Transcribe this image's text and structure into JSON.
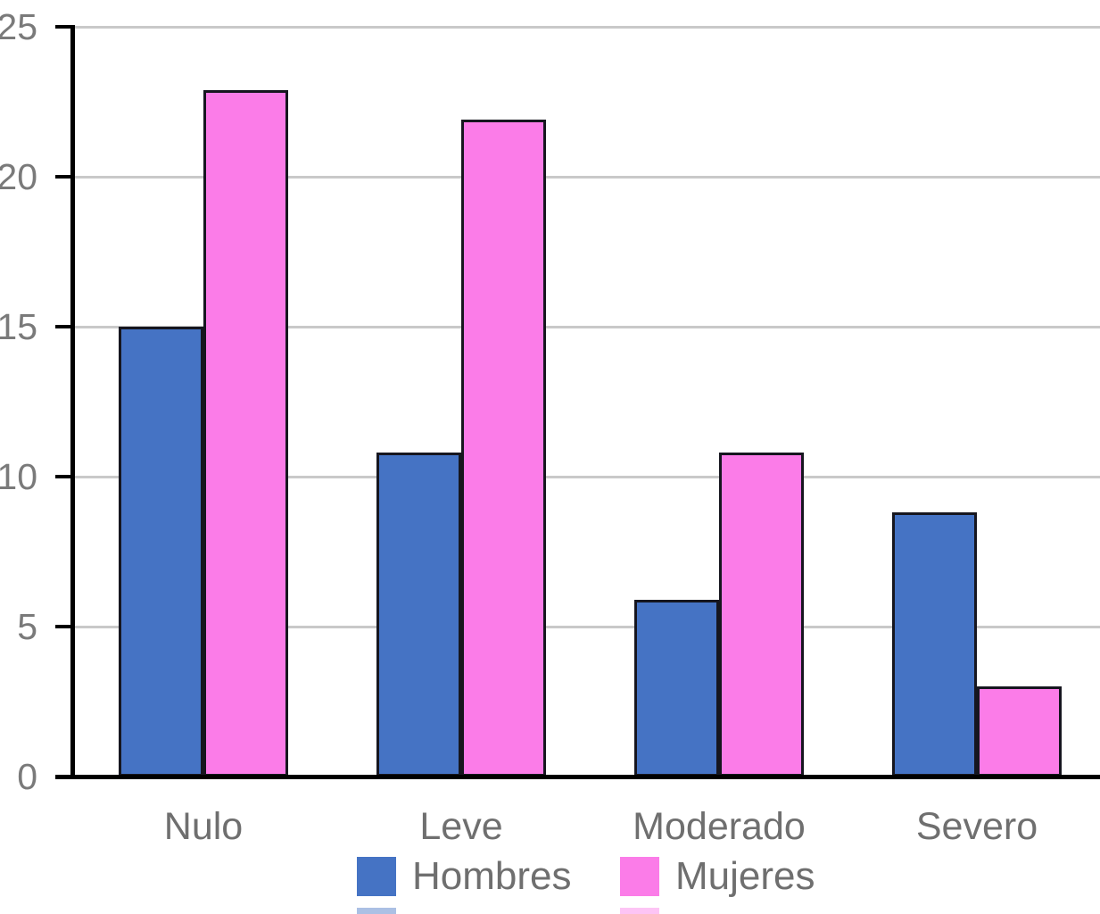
{
  "chart_data": {
    "type": "bar",
    "title": "",
    "xlabel": "",
    "ylabel": "",
    "categories": [
      "Nulo",
      "Leve",
      "Moderado",
      "Severo"
    ],
    "series": [
      {
        "name": "Hombres",
        "color": "#4573c4",
        "values": [
          15,
          10.8,
          5.9,
          8.8
        ]
      },
      {
        "name": "Mujeres",
        "color": "#fb7ce8",
        "values": [
          22.9,
          21.9,
          10.8,
          3
        ]
      }
    ],
    "ylim": [
      0,
      25
    ],
    "yticks": [
      0,
      5,
      10,
      15,
      20,
      25
    ],
    "ytick_labels": [
      "0",
      "5",
      "10",
      "15",
      "20",
      "25"
    ],
    "grid": true,
    "legend_position": "bottom"
  },
  "colors": {
    "background": "#ffffff",
    "grid": "#c9c9c9",
    "axis": "#000000",
    "bar_border": "#16161f",
    "hombres_fill": "#4573c4",
    "mujeres_fill": "#fb7ce8",
    "ytick_label": "#7a7a7a",
    "category_label": "#6f6f6f",
    "legend_label": "#6f6f6f"
  }
}
